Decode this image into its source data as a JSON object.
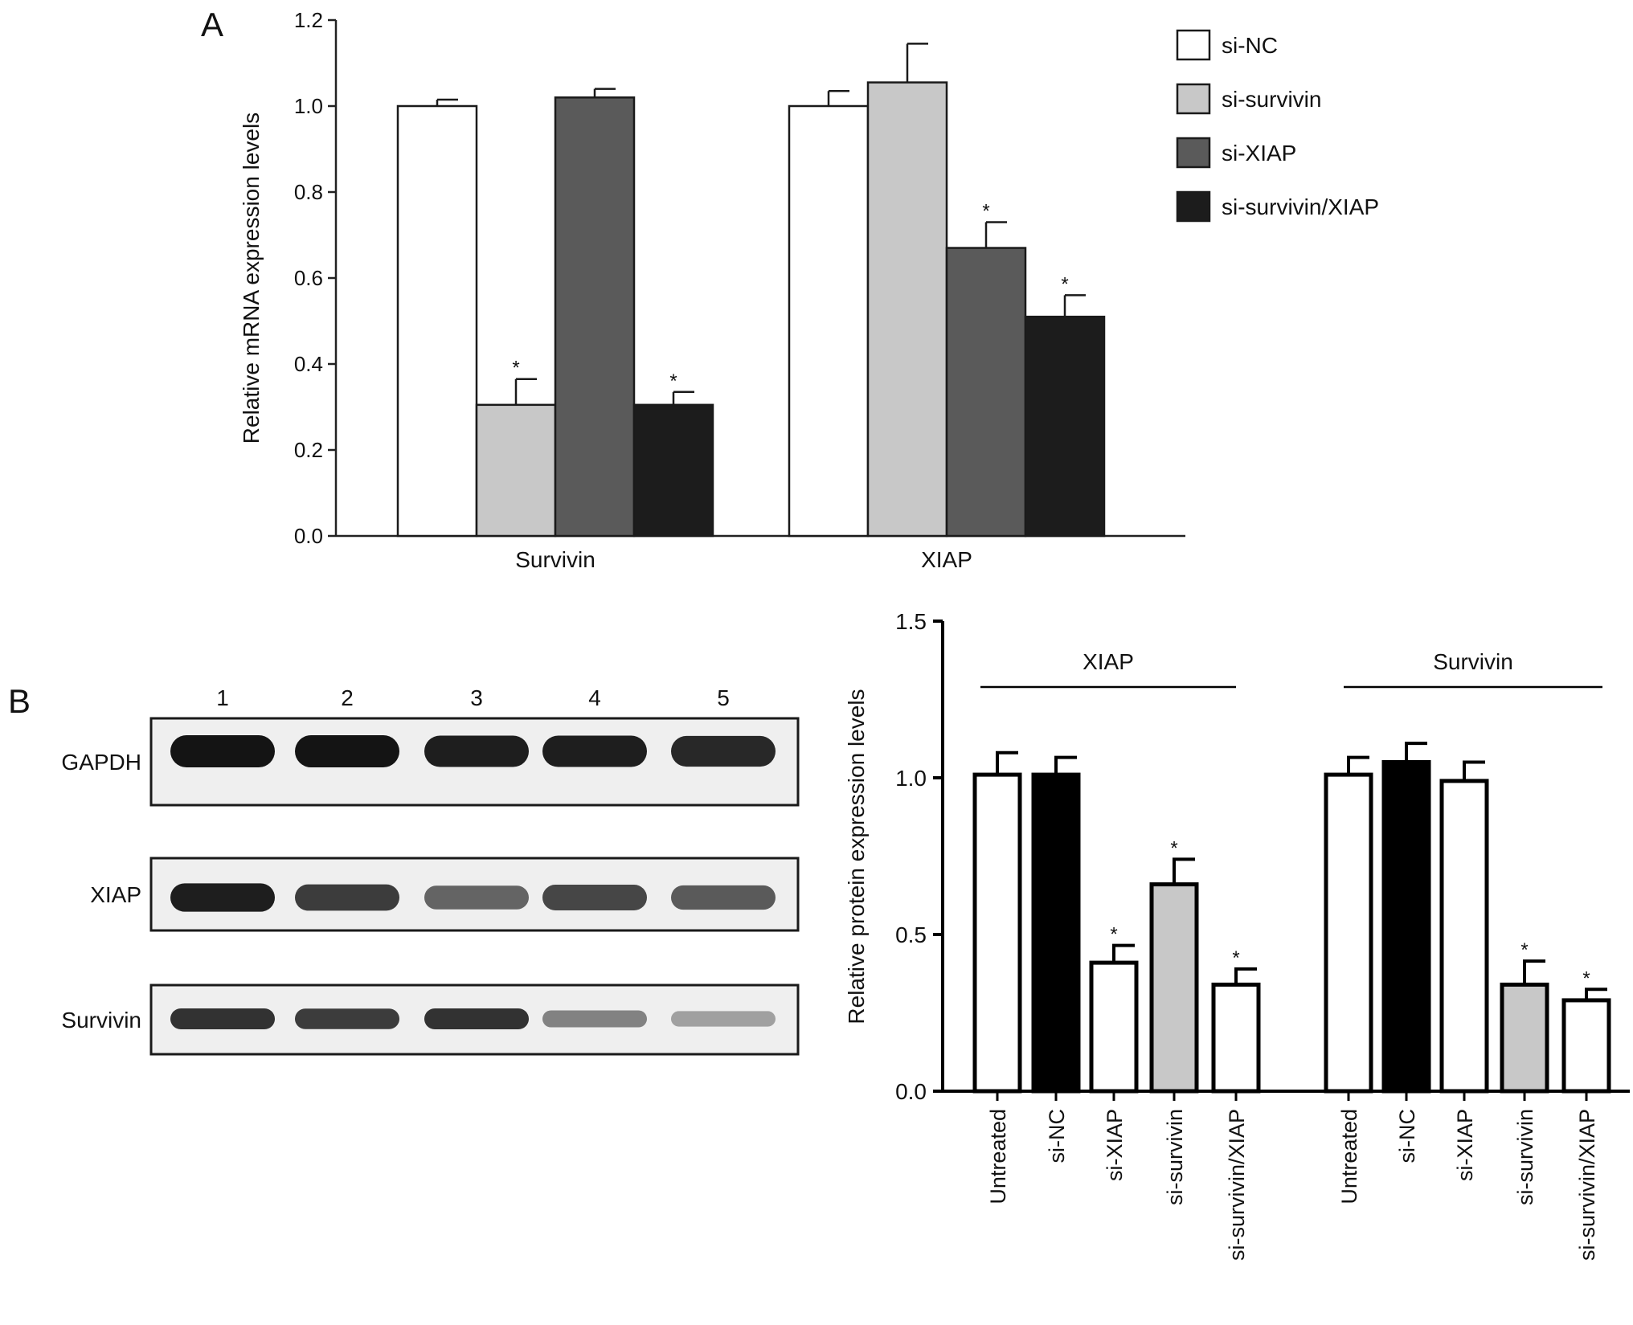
{
  "panels": {
    "a": {
      "letter": "A"
    },
    "b": {
      "letter": "B"
    }
  },
  "chart_data": [
    {
      "type": "bar",
      "panel": "A",
      "categories": [
        "Survivin",
        "XIAP"
      ],
      "ylabel": "Relative mRNA expression levels",
      "xlabel": "",
      "ylim": [
        0,
        1.2
      ],
      "yticks": [
        "0.0",
        "0.2",
        "0.4",
        "0.6",
        "0.8",
        "1.0",
        "1.2"
      ],
      "legend_position": "top-right",
      "series": [
        {
          "name": "si-NC",
          "color": "#ffffff",
          "values": [
            1.0,
            1.0
          ],
          "errors": [
            0.015,
            0.035
          ],
          "significant": [
            false,
            false
          ]
        },
        {
          "name": "si-survivin",
          "color": "#c8c8c8",
          "values": [
            0.305,
            1.055
          ],
          "errors": [
            0.06,
            0.09
          ],
          "significant": [
            true,
            false
          ]
        },
        {
          "name": "si-XIAP",
          "color": "#5a5a5a",
          "values": [
            1.02,
            0.67
          ],
          "errors": [
            0.02,
            0.06
          ],
          "significant": [
            false,
            true
          ]
        },
        {
          "name": "si-survivin/XIAP",
          "color": "#1c1c1c",
          "values": [
            0.305,
            0.51
          ],
          "errors": [
            0.03,
            0.05
          ],
          "significant": [
            true,
            true
          ]
        }
      ],
      "significance_marker": "*"
    },
    {
      "type": "bar",
      "panel": "B",
      "ylabel": "Relative protein expression levels",
      "xlabel": "",
      "ylim": [
        0,
        1.5
      ],
      "yticks": [
        "0.0",
        "0.5",
        "1.0",
        "1.5"
      ],
      "groups": [
        {
          "name": "XIAP",
          "categories": [
            "Untreated",
            "si-NC",
            "si-XIAP",
            "si-survivin",
            "si-survivin/XIAP"
          ],
          "values": [
            1.01,
            1.01,
            0.41,
            0.66,
            0.34
          ],
          "errors": [
            0.07,
            0.055,
            0.055,
            0.08,
            0.05
          ],
          "fills": [
            "#ffffff",
            "#000000",
            "#ffffff",
            "#c8c8c8",
            "#ffffff"
          ],
          "significant": [
            false,
            false,
            true,
            true,
            true
          ]
        },
        {
          "name": "Survivin",
          "categories": [
            "Untreated",
            "si-NC",
            "si-XIAP",
            "si-survivin",
            "si-survivin/XIAP"
          ],
          "values": [
            1.01,
            1.05,
            0.99,
            0.34,
            0.29
          ],
          "errors": [
            0.055,
            0.06,
            0.06,
            0.075,
            0.035
          ],
          "fills": [
            "#ffffff",
            "#000000",
            "#ffffff",
            "#c8c8c8",
            "#ffffff"
          ],
          "significant": [
            false,
            false,
            false,
            true,
            true
          ]
        }
      ],
      "significance_marker": "*"
    }
  ],
  "western_blot": {
    "lanes": [
      "1",
      "2",
      "3",
      "4",
      "5"
    ],
    "rows": [
      {
        "label": "GAPDH",
        "intensities": [
          1.0,
          1.0,
          0.95,
          0.95,
          0.9
        ]
      },
      {
        "label": "XIAP",
        "intensities": [
          0.95,
          0.8,
          0.6,
          0.75,
          0.65
        ]
      },
      {
        "label": "Survivin",
        "intensities": [
          0.85,
          0.8,
          0.85,
          0.45,
          0.3
        ]
      }
    ]
  }
}
